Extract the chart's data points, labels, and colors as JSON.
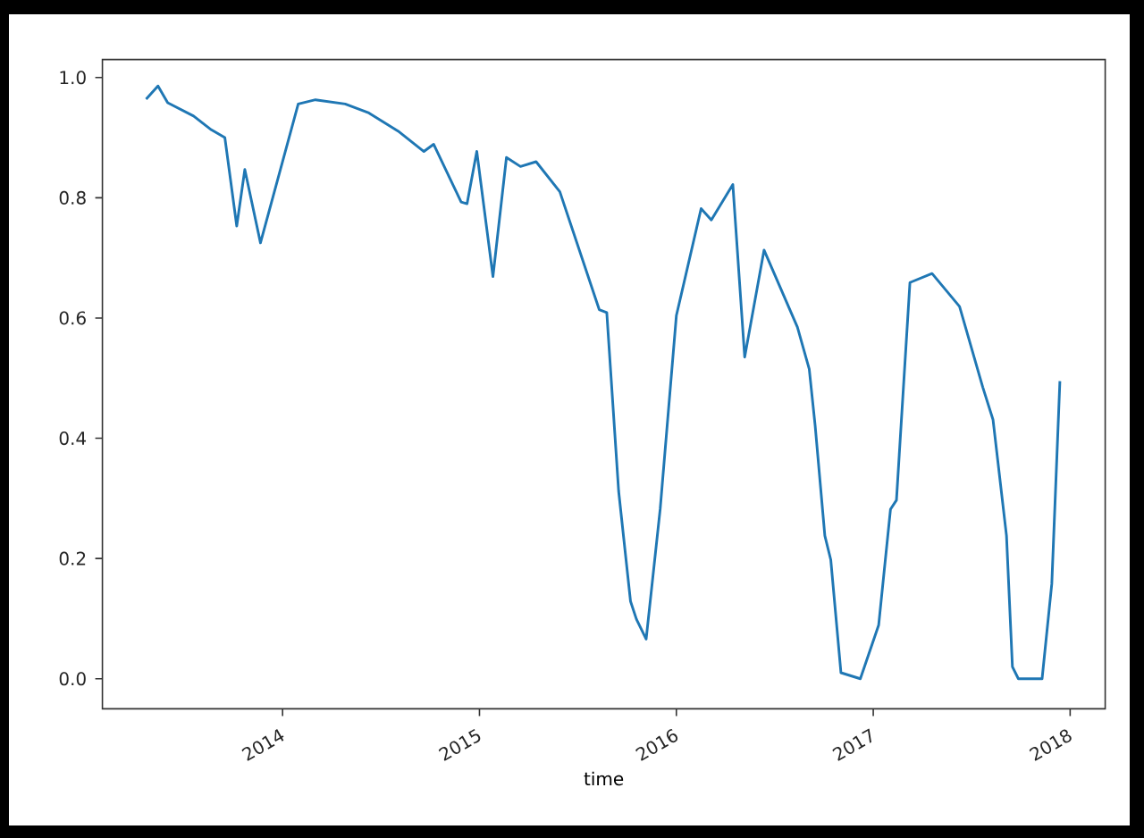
{
  "chart_data": {
    "type": "line",
    "xlabel": "time",
    "x": [
      "2013-04-23",
      "2013-05-15",
      "2013-06-02",
      "2013-07-20",
      "2013-08-22",
      "2013-09-16",
      "2013-10-08",
      "2013-10-23",
      "2013-11-21",
      "2014-01-30",
      "2014-03-03",
      "2014-04-27",
      "2014-06-10",
      "2014-08-03",
      "2014-09-20",
      "2014-10-08",
      "2014-11-28",
      "2014-12-09",
      "2014-12-27",
      "2015-01-26",
      "2015-02-20",
      "2015-03-18",
      "2015-04-16",
      "2015-05-30",
      "2015-08-11",
      "2015-08-25",
      "2015-09-16",
      "2015-10-08",
      "2015-10-19",
      "2015-11-06",
      "2015-12-02",
      "2016-01-01",
      "2016-02-16",
      "2016-03-06",
      "2016-04-15",
      "2016-05-07",
      "2016-06-12",
      "2016-08-13",
      "2016-09-04",
      "2016-09-15",
      "2016-10-03",
      "2016-10-14",
      "2016-11-02",
      "2016-12-08",
      "2017-01-11",
      "2017-02-02",
      "2017-02-13",
      "2017-03-10",
      "2017-04-20",
      "2017-06-10",
      "2017-07-23",
      "2017-08-11",
      "2017-09-05",
      "2017-09-16",
      "2017-09-27",
      "2017-11-10",
      "2017-11-28",
      "2017-12-13"
    ],
    "series": [
      {
        "color": "#1f77b4",
        "values": [
          0.964,
          0.986,
          0.958,
          0.936,
          0.913,
          0.9,
          0.753,
          0.847,
          0.725,
          0.956,
          0.963,
          0.956,
          0.941,
          0.911,
          0.877,
          0.889,
          0.793,
          0.79,
          0.877,
          0.669,
          0.867,
          0.852,
          0.86,
          0.81,
          0.614,
          0.609,
          0.312,
          0.129,
          0.099,
          0.066,
          0.282,
          0.604,
          0.782,
          0.763,
          0.822,
          0.535,
          0.713,
          0.585,
          0.515,
          0.421,
          0.238,
          0.198,
          0.01,
          0.0,
          0.089,
          0.282,
          0.297,
          0.659,
          0.674,
          0.619,
          0.485,
          0.431,
          0.238,
          0.02,
          0.0,
          0.0,
          0.158,
          0.495
        ]
      }
    ],
    "xlim": [
      "2013-02-01",
      "2018-03-07"
    ],
    "xticks": [
      {
        "value": "2014-01-01",
        "label": "2014"
      },
      {
        "value": "2015-01-01",
        "label": "2015"
      },
      {
        "value": "2016-01-01",
        "label": "2016"
      },
      {
        "value": "2017-01-01",
        "label": "2017"
      },
      {
        "value": "2018-01-01",
        "label": "2018"
      }
    ],
    "ylim": [
      -0.05,
      1.03
    ],
    "yticks": [
      {
        "value": 0,
        "label": "0.0"
      },
      0.2,
      0.4,
      0.6,
      0.8,
      {
        "value": 1,
        "label": "1.0"
      }
    ],
    "grid": false,
    "marker": "none",
    "line_style": "solid"
  }
}
